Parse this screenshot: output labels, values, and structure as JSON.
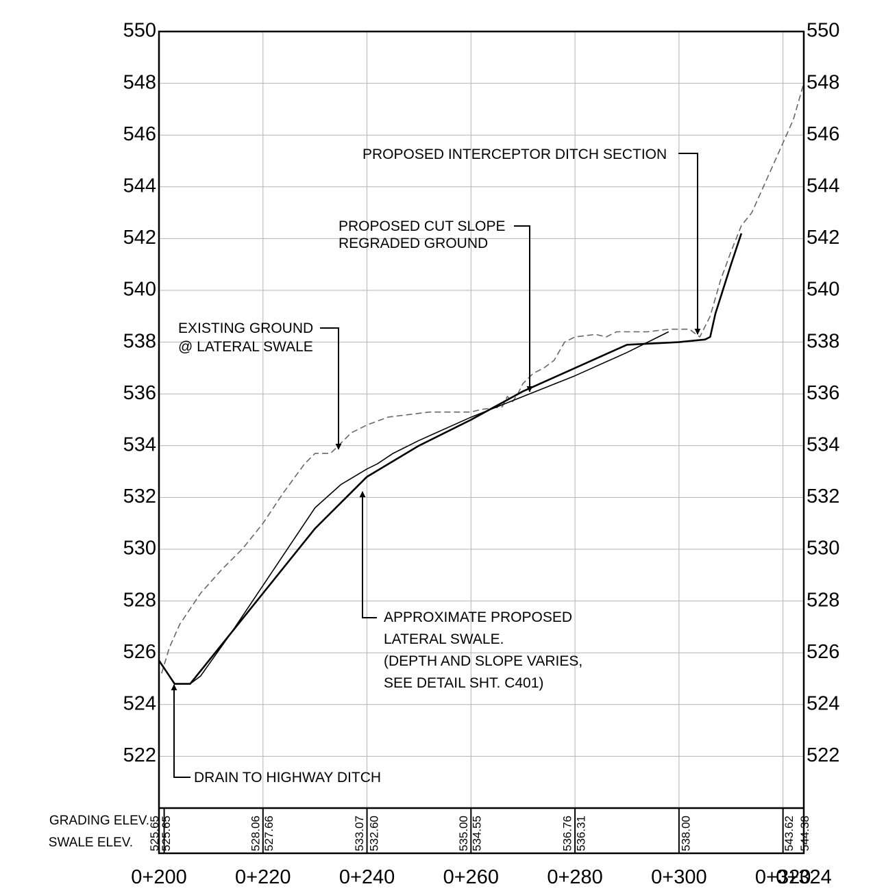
{
  "chart_data": {
    "type": "line",
    "xlim": [
      200,
      324
    ],
    "ylim": [
      520,
      550
    ],
    "y_ticks": [
      "550",
      "548",
      "546",
      "544",
      "542",
      "540",
      "538",
      "536",
      "534",
      "532",
      "530",
      "528",
      "526",
      "524",
      "522"
    ],
    "x_ticks": [
      {
        "x": 200,
        "label": "0+200"
      },
      {
        "x": 220,
        "label": "0+220"
      },
      {
        "x": 240,
        "label": "0+240"
      },
      {
        "x": 260,
        "label": "0+260"
      },
      {
        "x": 280,
        "label": "0+280"
      },
      {
        "x": 300,
        "label": "0+300"
      },
      {
        "x": 320,
        "label": "0+320"
      },
      {
        "x": 324,
        "label": "0+324"
      }
    ],
    "band_labels": {
      "grading": "GRADING ELEV.",
      "swale": "SWALE ELEV."
    },
    "band_values": [
      {
        "x": 199.3,
        "text": "525.65"
      },
      {
        "x": 201.5,
        "text": "525.65"
      },
      {
        "x": 218.7,
        "text": "528.06"
      },
      {
        "x": 221.3,
        "text": "527.66"
      },
      {
        "x": 238.7,
        "text": "533.07"
      },
      {
        "x": 241.5,
        "text": "532.60"
      },
      {
        "x": 258.7,
        "text": "535.00"
      },
      {
        "x": 261.3,
        "text": "534.55"
      },
      {
        "x": 278.7,
        "text": "536.76"
      },
      {
        "x": 281.3,
        "text": "536.31"
      },
      {
        "x": 301.5,
        "text": "538.00"
      },
      {
        "x": 321.3,
        "text": "543.62"
      },
      {
        "x": 324.3,
        "text": "544.38"
      }
    ],
    "series": [
      {
        "style": "dashed",
        "points": [
          [
            200.5,
            525.2
          ],
          [
            202,
            526.2
          ],
          [
            204,
            527.1
          ],
          [
            208,
            528.3
          ],
          [
            212,
            529.2
          ],
          [
            216,
            530.0
          ],
          [
            220,
            531.0
          ],
          [
            224,
            532.2
          ],
          [
            228,
            533.3
          ],
          [
            230,
            533.7
          ],
          [
            233,
            533.7
          ],
          [
            235,
            534.1
          ],
          [
            237,
            534.5
          ],
          [
            240,
            534.8
          ],
          [
            244,
            535.1
          ],
          [
            248,
            535.2
          ],
          [
            252,
            535.3
          ],
          [
            256,
            535.3
          ],
          [
            260,
            535.3
          ],
          [
            262,
            535.4
          ],
          [
            266,
            535.5
          ],
          [
            267,
            535.9
          ],
          [
            268,
            535.7
          ],
          [
            269,
            536.0
          ],
          [
            270,
            536.4
          ],
          [
            272,
            536.8
          ],
          [
            274,
            537.0
          ],
          [
            276,
            537.3
          ],
          [
            278,
            538.0
          ],
          [
            280,
            538.2
          ],
          [
            284,
            538.3
          ],
          [
            286,
            538.2
          ],
          [
            288,
            538.4
          ],
          [
            290,
            538.4
          ],
          [
            294,
            538.4
          ],
          [
            298,
            538.5
          ],
          [
            302,
            538.5
          ],
          [
            304,
            538.2
          ],
          [
            306,
            539.0
          ],
          [
            308,
            540.4
          ],
          [
            310,
            541.5
          ],
          [
            312,
            542.5
          ],
          [
            314,
            543.0
          ],
          [
            318,
            544.8
          ],
          [
            322,
            546.6
          ],
          [
            324,
            548.0
          ]
        ]
      },
      {
        "style": "thin-solid",
        "points": [
          [
            200,
            525.7
          ],
          [
            202,
            525.1
          ],
          [
            203,
            524.8
          ],
          [
            205,
            524.8
          ],
          [
            206,
            524.8
          ],
          [
            208,
            525.1
          ],
          [
            214,
            526.8
          ],
          [
            220,
            528.6
          ],
          [
            230,
            531.6
          ],
          [
            235,
            532.5
          ],
          [
            240,
            533.1
          ],
          [
            242,
            533.3
          ],
          [
            245,
            533.7
          ],
          [
            250,
            534.2
          ],
          [
            260,
            535.1
          ],
          [
            270,
            535.9
          ],
          [
            280,
            536.7
          ],
          [
            290,
            537.6
          ],
          [
            298,
            538.4
          ]
        ]
      },
      {
        "style": "thick-solid",
        "points": [
          [
            200,
            525.7
          ],
          [
            202,
            525.1
          ],
          [
            203,
            524.8
          ],
          [
            205,
            524.8
          ],
          [
            206,
            524.8
          ],
          [
            210,
            525.8
          ],
          [
            220,
            528.3
          ],
          [
            230,
            530.8
          ],
          [
            240,
            532.8
          ],
          [
            250,
            534.0
          ],
          [
            260,
            535.0
          ],
          [
            270,
            536.1
          ],
          [
            280,
            537.0
          ],
          [
            290,
            537.9
          ],
          [
            300,
            538.0
          ],
          [
            305,
            538.1
          ],
          [
            306,
            538.2
          ],
          [
            307,
            539.1
          ],
          [
            310,
            541.0
          ],
          [
            312,
            542.2
          ]
        ]
      }
    ],
    "annotations": [
      {
        "lines": [
          "PROPOSED INTERCEPTOR DITCH SECTION"
        ]
      },
      {
        "lines": [
          "PROPOSED CUT SLOPE",
          "REGRADED GROUND"
        ]
      },
      {
        "lines": [
          "EXISTING GROUND",
          "@ LATERAL SWALE"
        ]
      },
      {
        "lines": [
          "APPROXIMATE PROPOSED",
          "LATERAL SWALE.",
          "(DEPTH AND SLOPE VARIES,",
          "SEE DETAIL SHT. C401)"
        ]
      },
      {
        "lines": [
          "DRAIN TO HIGHWAY DITCH"
        ]
      }
    ]
  }
}
